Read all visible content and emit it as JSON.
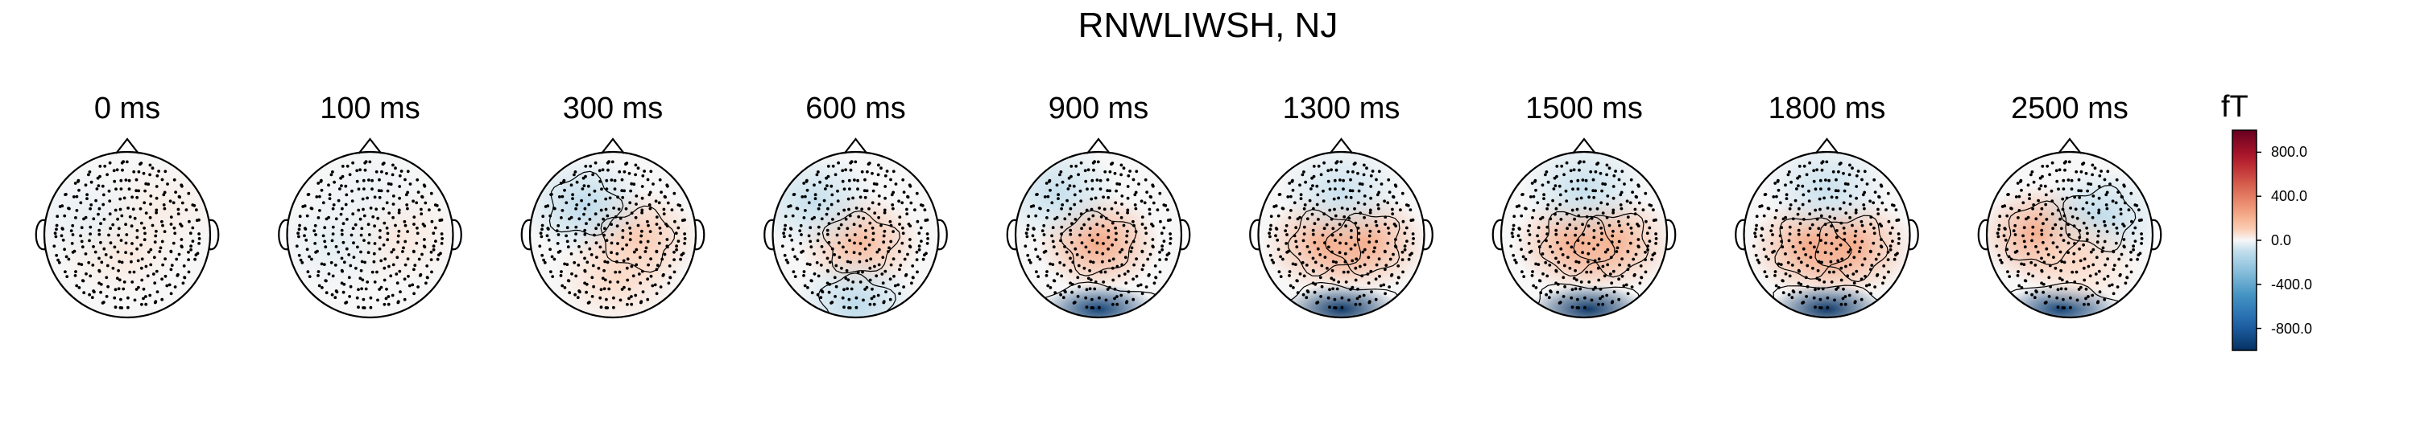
{
  "figure": {
    "title": "RNWLIWSH, NJ"
  },
  "chart_data": {
    "type": "heatmap",
    "subtype": "topomap-sequence",
    "title": "RNWLIWSH, NJ",
    "unit": "fT",
    "colormap": "RdBu_r",
    "clim": [
      -1000,
      1000
    ],
    "colorbar_ticks": [
      "800.0",
      "400.0",
      "0.0",
      "-400.0",
      "-800.0"
    ],
    "colorbar_tick_values": [
      800,
      400,
      0,
      -400,
      -800
    ],
    "panels": [
      {
        "time": "0 ms",
        "pattern": [
          {
            "x": -0.1,
            "y": -0.15,
            "v": 30
          },
          {
            "x": 0.4,
            "y": 0.3,
            "v": 20
          },
          {
            "x": -0.5,
            "y": 0.2,
            "v": -20
          }
        ]
      },
      {
        "time": "100 ms",
        "pattern": [
          {
            "x": 0.3,
            "y": 0.0,
            "v": 30
          },
          {
            "x": -0.4,
            "y": -0.1,
            "v": -25
          },
          {
            "x": 0.0,
            "y": 0.5,
            "v": -15
          }
        ]
      },
      {
        "time": "300 ms",
        "pattern": [
          {
            "x": 0.3,
            "y": -0.05,
            "v": 130
          },
          {
            "x": -0.35,
            "y": 0.35,
            "v": -120
          },
          {
            "x": 0.05,
            "y": -0.5,
            "v": 60
          }
        ]
      },
      {
        "time": "600 ms",
        "pattern": [
          {
            "x": 0.05,
            "y": -0.1,
            "v": 180
          },
          {
            "x": -0.5,
            "y": 0.4,
            "v": -90
          },
          {
            "x": 0.0,
            "y": -0.85,
            "v": -120
          }
        ]
      },
      {
        "time": "900 ms",
        "pattern": [
          {
            "x": 0.0,
            "y": -0.1,
            "v": 250
          },
          {
            "x": 0.0,
            "y": -0.9,
            "v": -950
          },
          {
            "x": -0.5,
            "y": 0.5,
            "v": -90
          }
        ]
      },
      {
        "time": "1300 ms",
        "pattern": [
          {
            "x": -0.2,
            "y": -0.1,
            "v": 220
          },
          {
            "x": 0.3,
            "y": -0.1,
            "v": 220
          },
          {
            "x": 0.0,
            "y": -0.9,
            "v": -1000
          },
          {
            "x": 0.0,
            "y": 0.5,
            "v": -80
          }
        ]
      },
      {
        "time": "1500 ms",
        "pattern": [
          {
            "x": -0.1,
            "y": -0.1,
            "v": 230
          },
          {
            "x": 0.35,
            "y": -0.1,
            "v": 200
          },
          {
            "x": 0.05,
            "y": -0.9,
            "v": -1000
          },
          {
            "x": 0.0,
            "y": 0.55,
            "v": -90
          }
        ]
      },
      {
        "time": "1800 ms",
        "pattern": [
          {
            "x": -0.2,
            "y": -0.15,
            "v": 240
          },
          {
            "x": 0.3,
            "y": -0.15,
            "v": 230
          },
          {
            "x": 0.0,
            "y": -0.9,
            "v": -1000
          },
          {
            "x": 0.0,
            "y": 0.55,
            "v": -80
          }
        ]
      },
      {
        "time": "2500 ms",
        "pattern": [
          {
            "x": -0.35,
            "y": 0.0,
            "v": 260
          },
          {
            "x": 0.35,
            "y": 0.2,
            "v": -120
          },
          {
            "x": -0.1,
            "y": -0.9,
            "v": -950
          },
          {
            "x": 0.1,
            "y": -0.3,
            "v": 60
          }
        ]
      }
    ]
  }
}
